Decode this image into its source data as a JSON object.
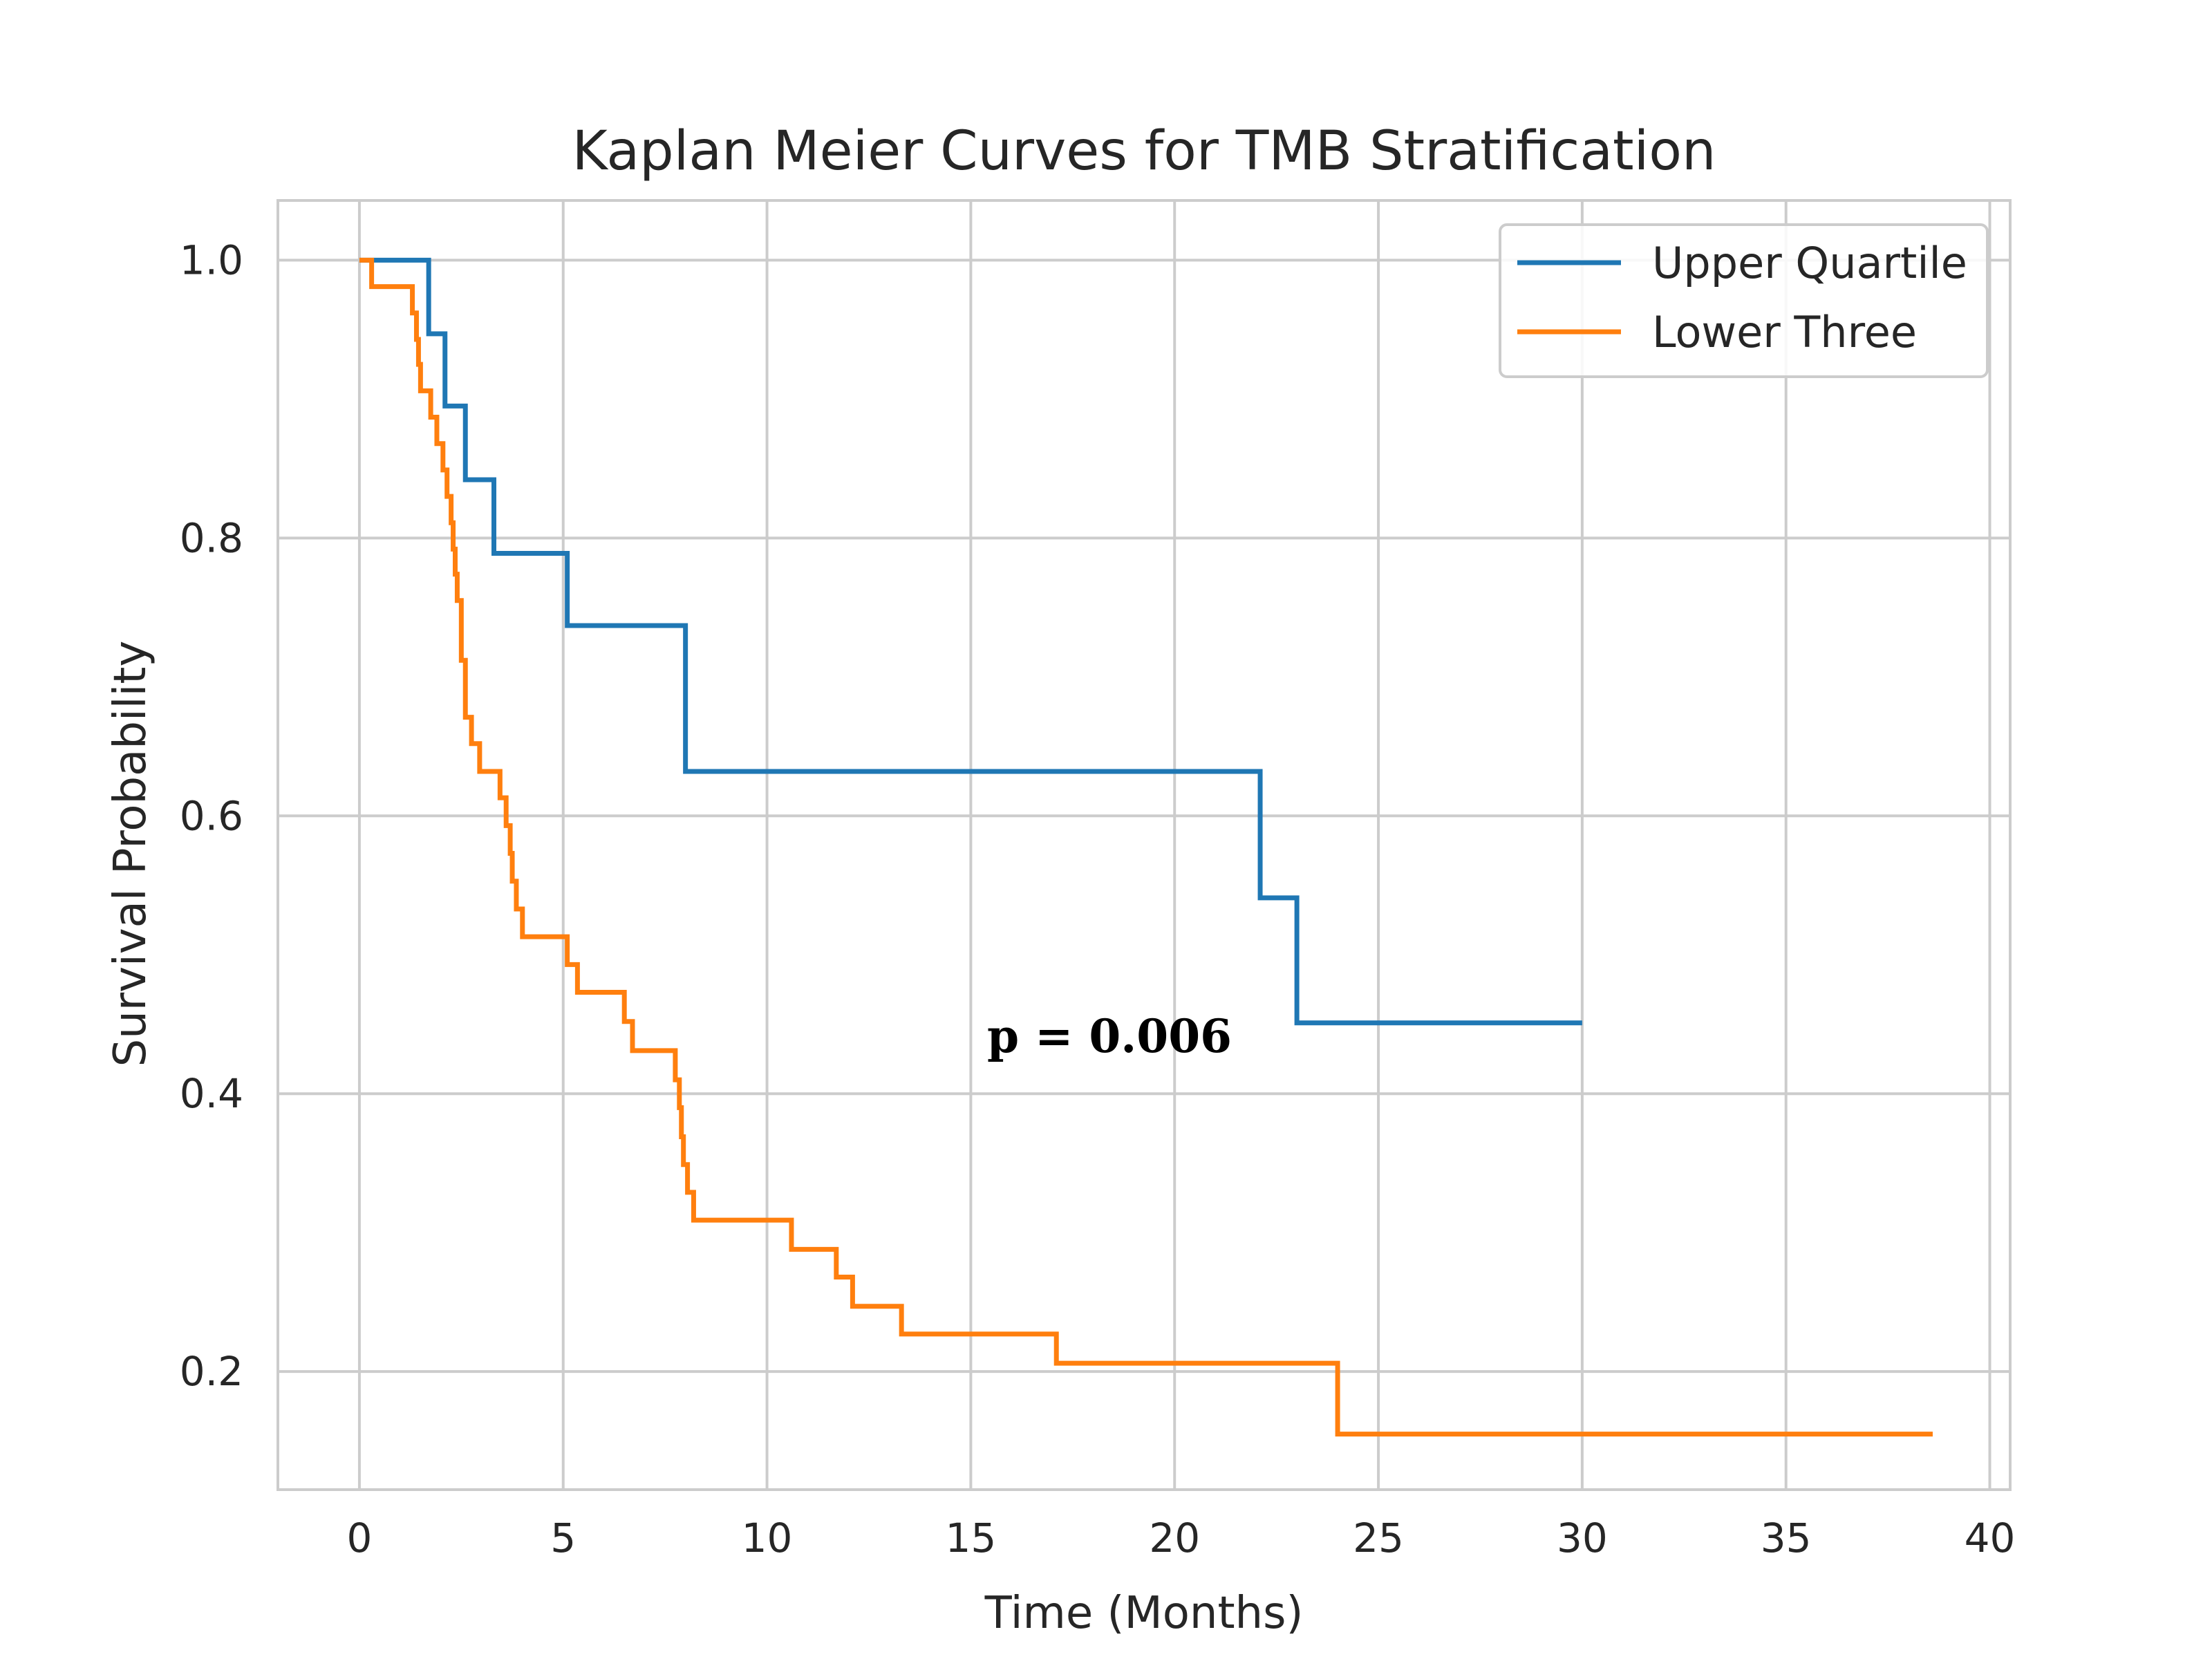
{
  "chart_data": {
    "type": "line",
    "title": "Kaplan Meier Curves for TMB Stratification",
    "xlabel": "Time (Months)",
    "ylabel": "Survival Probability",
    "xlim": [
      -2,
      40.5
    ],
    "ylim": [
      0.115,
      1.043
    ],
    "xticks": [
      0,
      5,
      10,
      15,
      20,
      25,
      30,
      35,
      40
    ],
    "yticks": [
      0.2,
      0.4,
      0.6,
      0.8,
      1.0
    ],
    "xtick_labels": [
      "0",
      "5",
      "10",
      "15",
      "20",
      "25",
      "30",
      "35",
      "40"
    ],
    "ytick_labels": [
      "0.2",
      "0.4",
      "0.6",
      "0.8",
      "1.0"
    ],
    "grid": true,
    "legend_position": "top-right",
    "step": "post",
    "series": [
      {
        "name": "Upper Quartile",
        "color": "#1f77b4",
        "x": [
          0,
          1.7,
          2.1,
          2.6,
          3.3,
          5.1,
          8.0,
          8.0,
          22.1,
          23.0,
          30.0
        ],
        "y": [
          1.0,
          0.947,
          0.895,
          0.842,
          0.789,
          0.737,
          0.684,
          0.632,
          0.541,
          0.451,
          0.451
        ]
      },
      {
        "name": "Lower Three",
        "color": "#ff7f0e",
        "x": [
          0,
          0.3,
          1.3,
          1.4,
          1.45,
          1.5,
          1.75,
          1.9,
          2.05,
          2.15,
          2.25,
          2.3,
          2.35,
          2.4,
          2.5,
          2.6,
          2.75,
          2.95,
          3.45,
          3.6,
          3.7,
          3.75,
          3.85,
          4.0,
          4.2,
          5.1,
          5.35,
          6.5,
          6.7,
          7.5,
          7.75,
          7.85,
          7.9,
          7.95,
          8.05,
          8.2,
          10.6,
          11.7,
          12.1,
          13.3,
          17.1,
          24.0,
          38.6
        ],
        "y": [
          1.0,
          0.981,
          0.962,
          0.943,
          0.925,
          0.906,
          0.887,
          0.868,
          0.849,
          0.83,
          0.811,
          0.792,
          0.774,
          0.755,
          0.712,
          0.671,
          0.652,
          0.632,
          0.613,
          0.593,
          0.573,
          0.553,
          0.533,
          0.513,
          0.513,
          0.493,
          0.473,
          0.452,
          0.431,
          0.431,
          0.41,
          0.39,
          0.369,
          0.349,
          0.329,
          0.309,
          0.288,
          0.268,
          0.247,
          0.227,
          0.206,
          0.155,
          0.155
        ]
      }
    ],
    "annotations": [
      {
        "text": "p = 0.006",
        "x": 15.4,
        "y": 0.43
      }
    ]
  }
}
